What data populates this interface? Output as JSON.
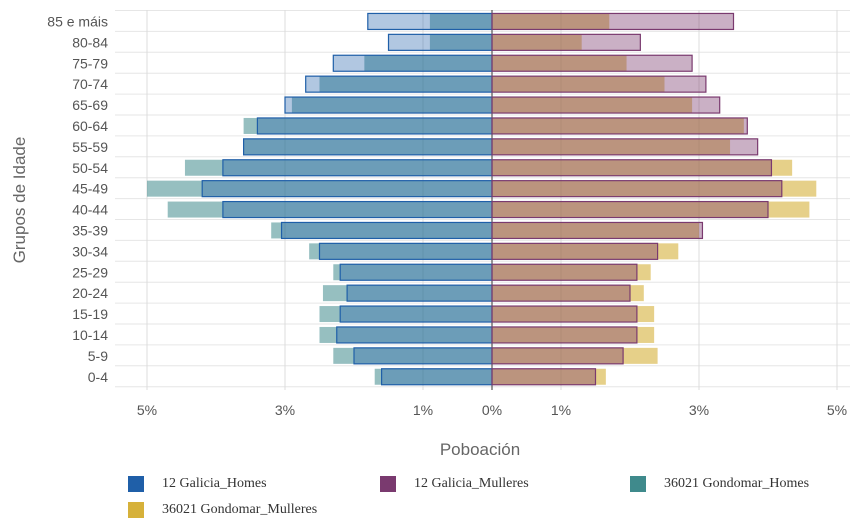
{
  "chart_data": {
    "type": "bar",
    "orientation": "horizontal",
    "subtype": "population-pyramid",
    "xlabel": "Poboación",
    "ylabel": "Grupos de Idade",
    "x_ticks": [
      "5%",
      "3%",
      "1%",
      "0%",
      "1%",
      "3%",
      "5%"
    ],
    "x_tick_values": [
      -5,
      -3,
      -1,
      0,
      1,
      3,
      5
    ],
    "xlim": [
      -5,
      5
    ],
    "categories": [
      "0-4",
      "5-9",
      "10-14",
      "15-19",
      "20-24",
      "25-29",
      "30-34",
      "35-39",
      "40-44",
      "45-49",
      "50-54",
      "55-59",
      "60-64",
      "65-69",
      "70-74",
      "75-79",
      "80-84",
      "85 e máis"
    ],
    "grid": true,
    "legend_position": "bottom",
    "series": [
      {
        "name": "12 Galicia_Homes",
        "color": "#1f5fa8",
        "side": "left",
        "values": [
          1.6,
          2.0,
          2.25,
          2.2,
          2.1,
          2.2,
          2.5,
          3.05,
          3.9,
          4.2,
          3.9,
          3.6,
          3.4,
          3.0,
          2.7,
          2.3,
          1.5,
          1.8
        ]
      },
      {
        "name": "12 Galicia_Mulleres",
        "color": "#7a3a6f",
        "side": "right",
        "values": [
          1.5,
          1.9,
          2.1,
          2.1,
          2.0,
          2.1,
          2.4,
          3.05,
          4.0,
          4.2,
          4.05,
          3.85,
          3.7,
          3.3,
          3.1,
          2.9,
          2.15,
          3.5
        ]
      },
      {
        "name": "36021 Gondomar_Homes",
        "color": "#3f8a8c",
        "side": "left",
        "values": [
          1.7,
          2.3,
          2.5,
          2.5,
          2.45,
          2.3,
          2.65,
          3.2,
          4.7,
          5.0,
          4.45,
          3.6,
          3.6,
          2.9,
          2.5,
          1.85,
          0.9,
          0.9
        ]
      },
      {
        "name": "36021 Gondomar_Mulleres",
        "color": "#d6b13a",
        "side": "right",
        "values": [
          1.65,
          2.4,
          2.35,
          2.35,
          2.2,
          2.3,
          2.7,
          3.0,
          4.6,
          4.7,
          4.35,
          3.45,
          3.65,
          2.9,
          2.5,
          1.95,
          1.3,
          1.7
        ]
      }
    ]
  }
}
